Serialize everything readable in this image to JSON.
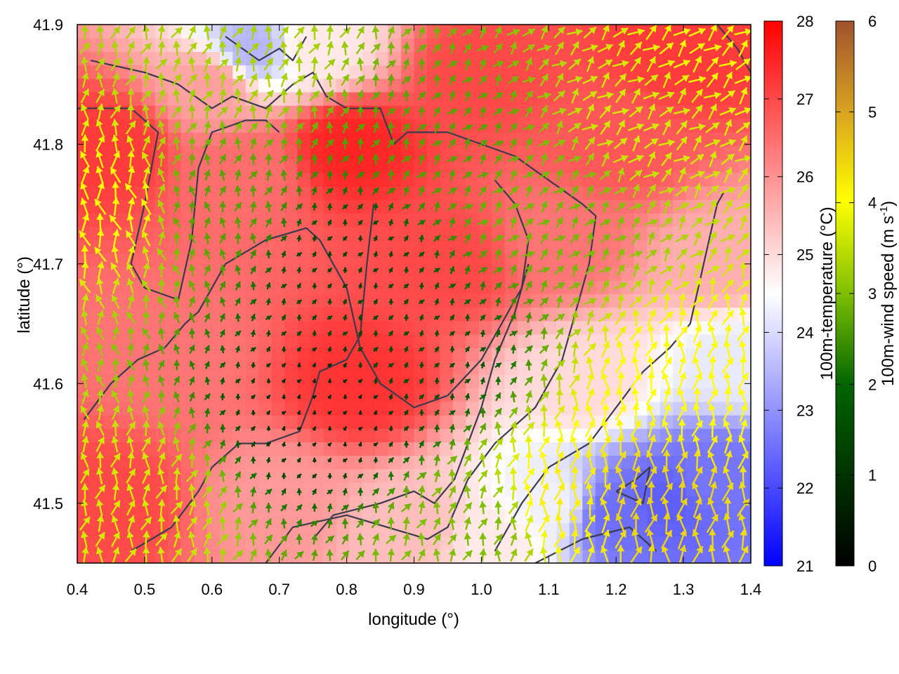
{
  "chart_data": {
    "type": "heatmap",
    "title": "",
    "xlabel": "longitude (°)",
    "ylabel": "latitude (°)",
    "xlim": [
      0.4,
      1.4
    ],
    "ylim": [
      41.45,
      41.9
    ],
    "x_ticks": [
      "0.4",
      "0.5",
      "0.6",
      "0.7",
      "0.8",
      "0.9",
      "1.0",
      "1.1",
      "1.2",
      "1.3",
      "1.4"
    ],
    "y_ticks": [
      "41.5",
      "41.6",
      "41.7",
      "41.8",
      "41.9"
    ],
    "x_tick_values": [
      0.4,
      0.5,
      0.6,
      0.7,
      0.8,
      0.9,
      1.0,
      1.1,
      1.2,
      1.3,
      1.4
    ],
    "y_tick_values": [
      41.5,
      41.6,
      41.7,
      41.8,
      41.9
    ],
    "temperature_colorbar": {
      "label": "100m-temperature (°C)",
      "range": [
        21,
        28
      ],
      "ticks": [
        "21",
        "22",
        "23",
        "24",
        "25",
        "26",
        "27",
        "28"
      ],
      "tick_values": [
        21,
        22,
        23,
        24,
        25,
        26,
        27,
        28
      ],
      "colors": [
        "#0000ff",
        "#ffffff",
        "#ff0000"
      ]
    },
    "wind_colorbar": {
      "label": "100m-wind speed (m s",
      "label_sup": "-1",
      "label_end": ")",
      "range": [
        0,
        6
      ],
      "ticks": [
        "0",
        "1",
        "2",
        "3",
        "4",
        "5",
        "6"
      ],
      "tick_values": [
        0,
        1,
        2,
        3,
        4,
        5,
        6
      ],
      "colors": [
        "#000000",
        "#006400",
        "#7fbf00",
        "#ffff00",
        "#daa520",
        "#a0522d"
      ]
    },
    "temperature_anchors": [
      {
        "lon": 0.45,
        "lat": 41.8,
        "t": 27.2
      },
      {
        "lon": 0.45,
        "lat": 41.5,
        "t": 27.0
      },
      {
        "lon": 0.6,
        "lat": 41.85,
        "t": 25.8
      },
      {
        "lon": 0.65,
        "lat": 41.78,
        "t": 26.5
      },
      {
        "lon": 0.8,
        "lat": 41.8,
        "t": 27.5
      },
      {
        "lon": 0.82,
        "lat": 41.6,
        "t": 27.3
      },
      {
        "lon": 0.55,
        "lat": 41.62,
        "t": 26.4
      },
      {
        "lon": 0.95,
        "lat": 41.7,
        "t": 27.0
      },
      {
        "lon": 1.0,
        "lat": 41.86,
        "t": 27.0
      },
      {
        "lon": 1.2,
        "lat": 41.8,
        "t": 26.8
      },
      {
        "lon": 1.3,
        "lat": 41.88,
        "t": 27.2
      },
      {
        "lon": 1.35,
        "lat": 41.7,
        "t": 25.6
      },
      {
        "lon": 1.38,
        "lat": 41.62,
        "t": 24.2
      },
      {
        "lon": 1.27,
        "lat": 41.5,
        "t": 22.3
      },
      {
        "lon": 1.2,
        "lat": 41.49,
        "t": 22.5
      },
      {
        "lon": 1.35,
        "lat": 41.52,
        "t": 22.6
      },
      {
        "lon": 1.1,
        "lat": 41.5,
        "t": 24.3
      },
      {
        "lon": 1.02,
        "lat": 41.47,
        "t": 24.8
      },
      {
        "lon": 0.9,
        "lat": 41.48,
        "t": 25.4
      },
      {
        "lon": 0.7,
        "lat": 41.5,
        "t": 25.9
      },
      {
        "lon": 0.66,
        "lat": 41.88,
        "t": 23.5
      },
      {
        "lon": 0.75,
        "lat": 41.88,
        "t": 24.8
      },
      {
        "lon": 1.12,
        "lat": 41.72,
        "t": 26.4
      },
      {
        "lon": 1.15,
        "lat": 41.6,
        "t": 25.0
      }
    ],
    "wind_speed_anchors": [
      {
        "lon": 0.45,
        "lat": 41.75,
        "s": 3.6
      },
      {
        "lon": 0.45,
        "lat": 41.5,
        "s": 3.2
      },
      {
        "lon": 0.6,
        "lat": 41.75,
        "s": 2.0
      },
      {
        "lon": 0.8,
        "lat": 41.7,
        "s": 0.8
      },
      {
        "lon": 0.78,
        "lat": 41.58,
        "s": 0.5
      },
      {
        "lon": 0.9,
        "lat": 41.62,
        "s": 0.9
      },
      {
        "lon": 0.95,
        "lat": 41.8,
        "s": 2.0
      },
      {
        "lon": 1.1,
        "lat": 41.75,
        "s": 2.3
      },
      {
        "lon": 1.25,
        "lat": 41.82,
        "s": 3.2
      },
      {
        "lon": 1.3,
        "lat": 41.6,
        "s": 3.6
      },
      {
        "lon": 1.25,
        "lat": 41.5,
        "s": 4.2
      },
      {
        "lon": 1.12,
        "lat": 41.5,
        "s": 3.8
      },
      {
        "lon": 1.0,
        "lat": 41.48,
        "s": 2.4
      },
      {
        "lon": 0.65,
        "lat": 41.88,
        "s": 2.8
      },
      {
        "lon": 1.37,
        "lat": 41.88,
        "s": 3.5
      }
    ],
    "wind_directions_deg": [
      {
        "lon": 0.45,
        "lat": 41.7,
        "dir": 100
      },
      {
        "lon": 0.8,
        "lat": 41.65,
        "dir": 60
      },
      {
        "lon": 1.1,
        "lat": 41.75,
        "dir": 45
      },
      {
        "lon": 1.3,
        "lat": 41.55,
        "dir": 85
      },
      {
        "lon": 0.7,
        "lat": 41.85,
        "dir": 70
      },
      {
        "lon": 1.25,
        "lat": 41.85,
        "dir": 40
      }
    ],
    "contours": [
      [
        [
          0.4,
          41.83
        ],
        [
          0.48,
          41.83
        ],
        [
          0.52,
          41.81
        ],
        [
          0.5,
          41.75
        ],
        [
          0.48,
          41.7
        ],
        [
          0.5,
          41.68
        ],
        [
          0.55,
          41.67
        ],
        [
          0.57,
          41.72
        ],
        [
          0.58,
          41.78
        ],
        [
          0.6,
          41.81
        ],
        [
          0.65,
          41.82
        ],
        [
          0.68,
          41.82
        ],
        [
          0.7,
          41.81
        ]
      ],
      [
        [
          0.42,
          41.87
        ],
        [
          0.5,
          41.86
        ],
        [
          0.55,
          41.85
        ],
        [
          0.6,
          41.83
        ],
        [
          0.63,
          41.84
        ],
        [
          0.68,
          41.83
        ],
        [
          0.72,
          41.85
        ],
        [
          0.75,
          41.86
        ],
        [
          0.77,
          41.84
        ],
        [
          0.8,
          41.83
        ],
        [
          0.85,
          41.83
        ],
        [
          0.87,
          41.8
        ],
        [
          0.89,
          41.81
        ],
        [
          0.95,
          41.81
        ],
        [
          1.0,
          41.8
        ],
        [
          1.05,
          41.79
        ],
        [
          1.1,
          41.77
        ],
        [
          1.15,
          41.75
        ],
        [
          1.17,
          41.74
        ],
        [
          1.16,
          41.7
        ],
        [
          1.14,
          41.66
        ],
        [
          1.12,
          41.62
        ],
        [
          1.08,
          41.58
        ],
        [
          1.02,
          41.55
        ],
        [
          0.98,
          41.52
        ],
        [
          0.95,
          41.48
        ],
        [
          0.92,
          41.47
        ],
        [
          0.8,
          41.49
        ],
        [
          0.72,
          41.48
        ],
        [
          0.68,
          41.45
        ]
      ],
      [
        [
          0.41,
          41.57
        ],
        [
          0.45,
          41.6
        ],
        [
          0.49,
          41.62
        ],
        [
          0.53,
          41.63
        ],
        [
          0.56,
          41.65
        ],
        [
          0.58,
          41.66
        ],
        [
          0.62,
          41.7
        ],
        [
          0.68,
          41.72
        ],
        [
          0.74,
          41.73
        ],
        [
          0.76,
          41.72
        ],
        [
          0.78,
          41.7
        ],
        [
          0.8,
          41.68
        ],
        [
          0.82,
          41.63
        ],
        [
          0.85,
          41.6
        ],
        [
          0.9,
          41.58
        ],
        [
          0.95,
          41.59
        ],
        [
          1.0,
          41.62
        ],
        [
          1.03,
          41.65
        ],
        [
          1.06,
          41.68
        ],
        [
          1.07,
          41.72
        ],
        [
          1.05,
          41.75
        ],
        [
          1.02,
          41.77
        ]
      ],
      [
        [
          0.48,
          41.46
        ],
        [
          0.54,
          41.48
        ],
        [
          0.58,
          41.51
        ],
        [
          0.6,
          41.53
        ],
        [
          0.64,
          41.55
        ],
        [
          0.68,
          41.55
        ],
        [
          0.73,
          41.56
        ],
        [
          0.75,
          41.59
        ],
        [
          0.76,
          41.61
        ],
        [
          0.8,
          41.62
        ],
        [
          0.82,
          41.64
        ],
        [
          0.83,
          41.7
        ],
        [
          0.84,
          41.75
        ]
      ],
      [
        [
          0.75,
          41.47
        ],
        [
          0.78,
          41.49
        ],
        [
          0.85,
          41.5
        ],
        [
          0.9,
          41.51
        ],
        [
          0.93,
          41.5
        ],
        [
          0.96,
          41.52
        ],
        [
          0.98,
          41.55
        ],
        [
          1.0,
          41.58
        ],
        [
          1.02,
          41.62
        ],
        [
          1.05,
          41.66
        ],
        [
          1.07,
          41.7
        ]
      ],
      [
        [
          1.02,
          41.46
        ],
        [
          1.06,
          41.5
        ],
        [
          1.1,
          41.53
        ],
        [
          1.16,
          41.55
        ],
        [
          1.2,
          41.58
        ],
        [
          1.24,
          41.61
        ],
        [
          1.28,
          41.63
        ],
        [
          1.31,
          41.65
        ],
        [
          1.33,
          41.7
        ],
        [
          1.35,
          41.75
        ],
        [
          1.36,
          41.76
        ]
      ],
      [
        [
          1.08,
          41.45
        ],
        [
          1.15,
          41.47
        ],
        [
          1.22,
          41.48
        ],
        [
          1.26,
          41.46
        ]
      ],
      [
        [
          1.2,
          41.51
        ],
        [
          1.23,
          41.52
        ],
        [
          1.25,
          41.53
        ],
        [
          1.24,
          41.5
        ],
        [
          1.2,
          41.51
        ]
      ],
      [
        [
          0.62,
          41.89
        ],
        [
          0.67,
          41.87
        ],
        [
          0.7,
          41.88
        ],
        [
          0.72,
          41.87
        ],
        [
          0.74,
          41.89
        ]
      ],
      [
        [
          1.35,
          41.9
        ],
        [
          1.38,
          41.88
        ],
        [
          1.4,
          41.86
        ]
      ]
    ]
  }
}
